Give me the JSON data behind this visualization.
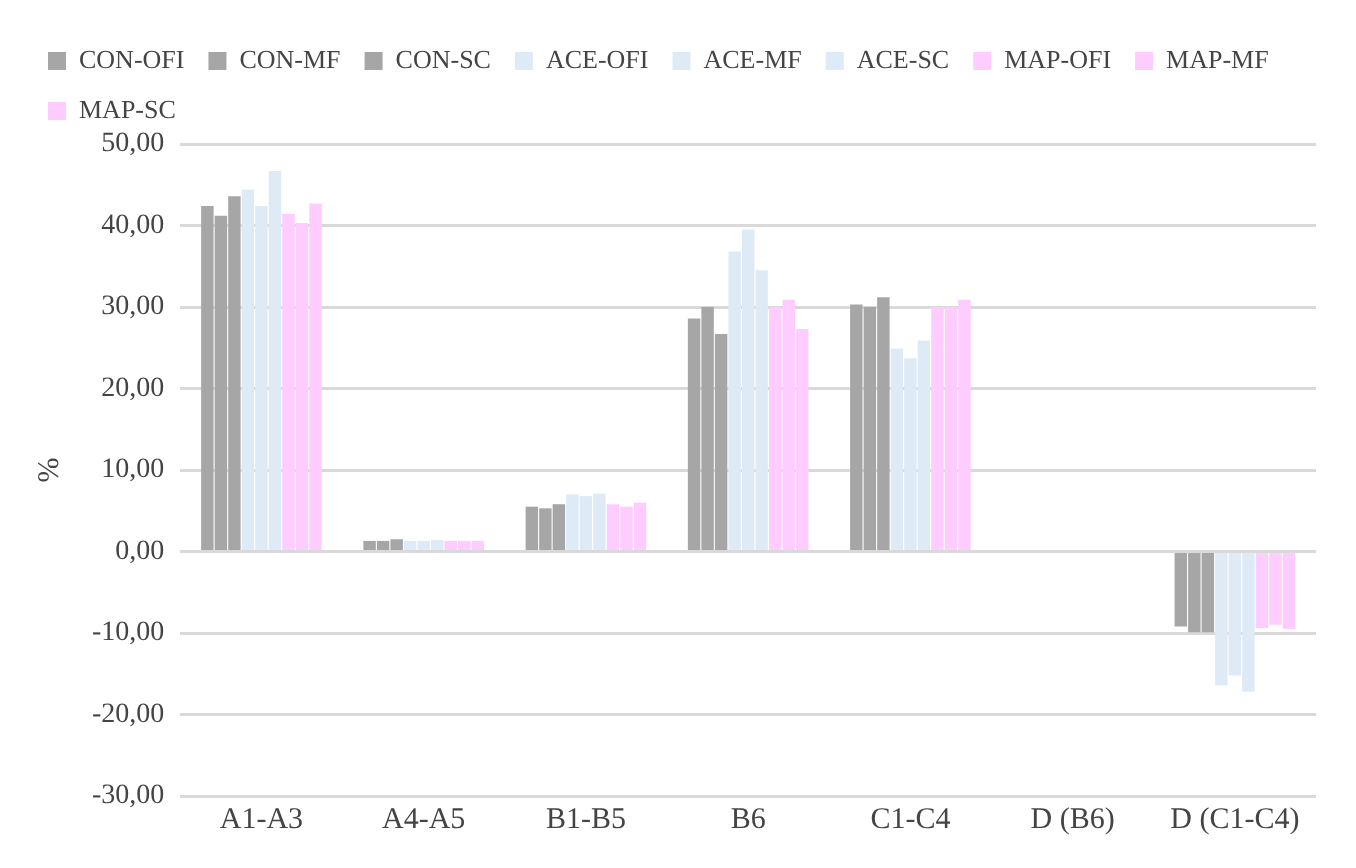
{
  "chart_data": {
    "type": "bar",
    "ylabel": "%",
    "categories": [
      "A1-A3",
      "A4-A5",
      "B1-B5",
      "B6",
      "C1-C4",
      "D (B6)",
      "D (C1-C4)"
    ],
    "series": [
      {
        "name": "CON-OFI",
        "color": "#a6a6a6",
        "values": [
          42.4,
          1.3,
          5.5,
          28.6,
          30.3,
          0,
          -9.2
        ]
      },
      {
        "name": "CON-MF",
        "color": "#a6a6a6",
        "values": [
          41.2,
          1.3,
          5.3,
          30.0,
          30.0,
          0,
          -9.9
        ]
      },
      {
        "name": "CON-SC",
        "color": "#a6a6a6",
        "values": [
          43.6,
          1.5,
          5.8,
          26.7,
          31.2,
          0,
          -9.9
        ]
      },
      {
        "name": "ACE-OFI",
        "color": "#deebf7",
        "values": [
          44.4,
          1.3,
          7.0,
          36.8,
          24.9,
          0,
          -16.4
        ]
      },
      {
        "name": "ACE-MF",
        "color": "#deebf7",
        "values": [
          42.4,
          1.3,
          6.8,
          39.5,
          23.7,
          0,
          -15.2
        ]
      },
      {
        "name": "ACE-SC",
        "color": "#deebf7",
        "values": [
          46.7,
          1.4,
          7.1,
          34.5,
          25.9,
          0,
          -17.2
        ]
      },
      {
        "name": "MAP-OFI",
        "color": "#ffccff",
        "values": [
          41.4,
          1.3,
          5.8,
          30.0,
          30.0,
          0,
          -9.4
        ]
      },
      {
        "name": "MAP-MF",
        "color": "#ffccff",
        "values": [
          40.3,
          1.3,
          5.5,
          30.9,
          30.0,
          0,
          -9.0
        ]
      },
      {
        "name": "MAP-SC",
        "color": "#ffccff",
        "values": [
          42.7,
          1.3,
          6.0,
          27.3,
          30.9,
          0,
          -9.5
        ]
      }
    ],
    "ylim": [
      -30,
      50
    ],
    "yticks": [
      {
        "value": -30,
        "label": "-30,00"
      },
      {
        "value": -20,
        "label": "-20,00"
      },
      {
        "value": -10,
        "label": "-10,00"
      },
      {
        "value": 0,
        "label": "0,00"
      },
      {
        "value": 10,
        "label": "10,00"
      },
      {
        "value": 20,
        "label": "20,00"
      },
      {
        "value": 30,
        "label": "30,00"
      },
      {
        "value": 40,
        "label": "40,00"
      },
      {
        "value": 50,
        "label": "50,00"
      }
    ],
    "grid": "y",
    "legend": "top"
  }
}
